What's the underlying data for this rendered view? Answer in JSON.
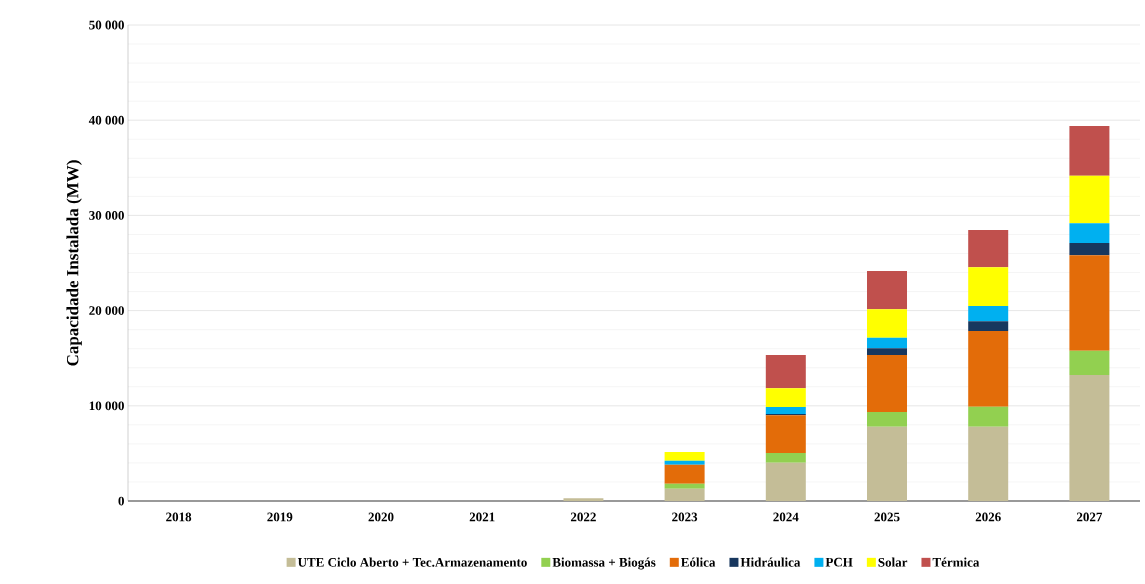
{
  "chart_data": {
    "type": "bar",
    "stacked": true,
    "ylabel": "Capacidade Instalada (MW)",
    "categories": [
      "2018",
      "2019",
      "2020",
      "2021",
      "2022",
      "2023",
      "2024",
      "2025",
      "2026",
      "2027"
    ],
    "series": [
      {
        "name": "UTE Ciclo Aberto + Tec.Armazenamento",
        "color": "#c4bd97",
        "values": [
          0,
          0,
          0,
          0,
          300,
          1290,
          4020,
          7800,
          7800,
          13240
        ]
      },
      {
        "name": "Biomassa + Biogás",
        "color": "#92d050",
        "values": [
          0,
          0,
          0,
          0,
          0,
          530,
          1020,
          1550,
          2100,
          2550
        ]
      },
      {
        "name": "Eólica",
        "color": "#e36c09",
        "values": [
          0,
          0,
          0,
          0,
          0,
          1990,
          3960,
          5990,
          7960,
          10020
        ]
      },
      {
        "name": "Hidráulica",
        "color": "#17375e",
        "values": [
          0,
          0,
          0,
          0,
          0,
          0,
          140,
          700,
          1020,
          1290
        ]
      },
      {
        "name": "PCH",
        "color": "#00b0f0",
        "values": [
          0,
          0,
          0,
          0,
          0,
          420,
          730,
          1110,
          1600,
          2070
        ]
      },
      {
        "name": "Solar",
        "color": "#ffff00",
        "values": [
          0,
          0,
          0,
          0,
          0,
          920,
          1970,
          2980,
          4070,
          5000
        ]
      },
      {
        "name": "Térmica",
        "color": "#c0504d",
        "values": [
          0,
          0,
          0,
          0,
          0,
          0,
          3500,
          4030,
          3920,
          5220
        ]
      }
    ],
    "ylim": [
      0,
      50000
    ],
    "yticks": [
      0,
      {
        "value": 10000,
        "label": "10 000"
      },
      {
        "value": 20000,
        "label": "20 000"
      },
      {
        "value": 30000,
        "label": "30 000"
      },
      {
        "value": 40000,
        "label": "40 000"
      },
      {
        "value": 50000,
        "label": "50 000"
      }
    ],
    "grid": "y",
    "legend": "bottom"
  }
}
